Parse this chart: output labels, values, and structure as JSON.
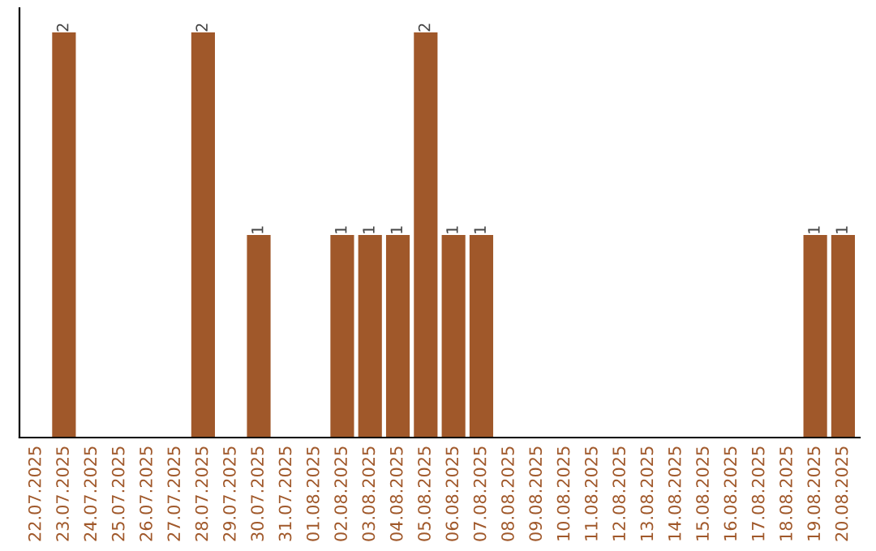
{
  "chart_data": {
    "type": "bar",
    "categories": [
      "22.07.2025",
      "23.07.2025",
      "24.07.2025",
      "25.07.2025",
      "26.07.2025",
      "27.07.2025",
      "28.07.2025",
      "29.07.2025",
      "30.07.2025",
      "31.07.2025",
      "01.08.2025",
      "02.08.2025",
      "03.08.2025",
      "04.08.2025",
      "05.08.2025",
      "06.08.2025",
      "07.08.2025",
      "08.08.2025",
      "09.08.2025",
      "10.08.2025",
      "11.08.2025",
      "12.08.2025",
      "13.08.2025",
      "14.08.2025",
      "15.08.2025",
      "16.08.2025",
      "17.08.2025",
      "18.08.2025",
      "19.08.2025",
      "20.08.2025"
    ],
    "values": [
      0,
      2,
      0,
      0,
      0,
      0,
      2,
      0,
      1,
      0,
      0,
      1,
      1,
      1,
      2,
      1,
      1,
      0,
      0,
      0,
      0,
      0,
      0,
      0,
      0,
      0,
      0,
      0,
      1,
      1
    ],
    "value_labels": [
      null,
      "2",
      null,
      null,
      null,
      null,
      "2",
      null,
      "1",
      null,
      null,
      "1",
      "1",
      "1",
      "2",
      "1",
      "1",
      null,
      null,
      null,
      null,
      null,
      null,
      null,
      null,
      null,
      null,
      null,
      "1",
      "1"
    ],
    "color": "#a0582a",
    "tick_labels": "x",
    "grid": false
  }
}
